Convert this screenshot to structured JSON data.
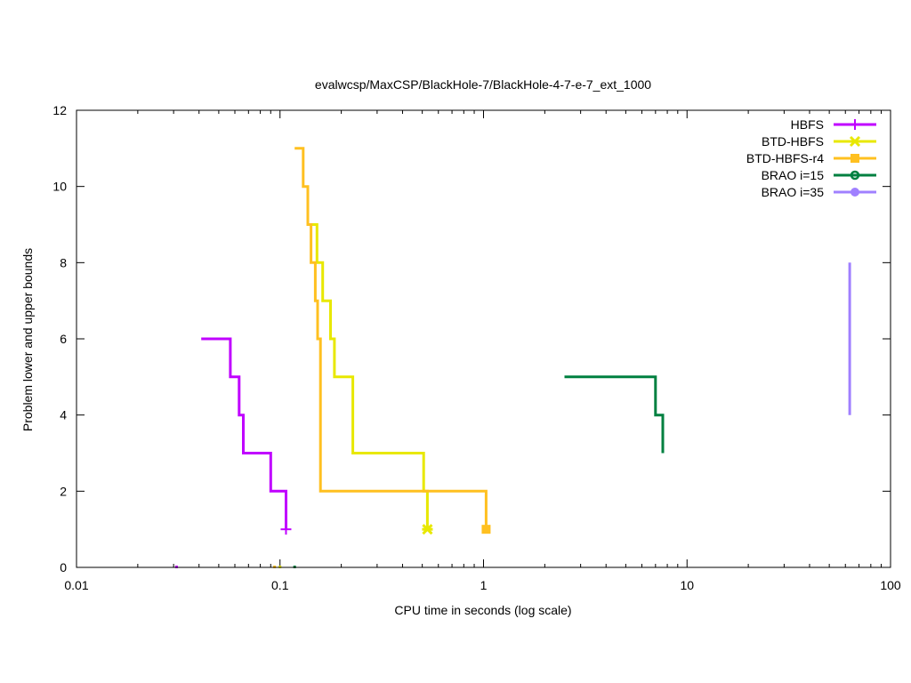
{
  "chart_data": {
    "type": "line",
    "title": "evalwcsp/MaxCSP/BlackHole-7/BlackHole-4-7-e-7_ext_1000",
    "xlabel": "CPU time in seconds (log scale)",
    "ylabel": "Problem lower and upper bounds",
    "xscale": "log",
    "xlim": [
      0.01,
      100
    ],
    "ylim": [
      0,
      12
    ],
    "xticks": [
      0.01,
      0.1,
      1,
      10,
      100
    ],
    "xtick_labels": [
      "0.01",
      "0.1",
      "1",
      "10",
      "100"
    ],
    "yticks": [
      0,
      2,
      4,
      6,
      8,
      10,
      12
    ],
    "ytick_labels": [
      "0",
      "2",
      "4",
      "6",
      "8",
      "10",
      "12"
    ],
    "legend_position": "top-right",
    "series": [
      {
        "name": "HBFS",
        "color": "#c000ff",
        "marker": "plus",
        "upper": [
          [
            0.041,
            6
          ],
          [
            0.057,
            6
          ],
          [
            0.057,
            5
          ],
          [
            0.063,
            5
          ],
          [
            0.063,
            4
          ],
          [
            0.066,
            4
          ],
          [
            0.066,
            3
          ],
          [
            0.09,
            3
          ],
          [
            0.09,
            2
          ],
          [
            0.107,
            2
          ],
          [
            0.107,
            1
          ]
        ],
        "final": [
          0.107,
          1
        ],
        "lower_marks": [
          [
            0.031,
            0
          ]
        ]
      },
      {
        "name": "BTD-HBFS",
        "color": "#e8e800",
        "marker": "star",
        "upper": [
          [
            0.135,
            9
          ],
          [
            0.152,
            9
          ],
          [
            0.152,
            8
          ],
          [
            0.162,
            8
          ],
          [
            0.162,
            7
          ],
          [
            0.177,
            7
          ],
          [
            0.177,
            6
          ],
          [
            0.185,
            6
          ],
          [
            0.185,
            5
          ],
          [
            0.228,
            5
          ],
          [
            0.228,
            3
          ],
          [
            0.508,
            3
          ],
          [
            0.508,
            2
          ],
          [
            0.53,
            2
          ],
          [
            0.53,
            1
          ]
        ],
        "final": [
          0.53,
          1
        ],
        "lower_marks": [
          [
            0.1,
            0
          ]
        ]
      },
      {
        "name": "BTD-HBFS-r4",
        "color": "#ffc020",
        "marker": "square",
        "upper": [
          [
            0.118,
            11
          ],
          [
            0.13,
            11
          ],
          [
            0.13,
            10
          ],
          [
            0.137,
            10
          ],
          [
            0.137,
            9
          ],
          [
            0.142,
            9
          ],
          [
            0.142,
            8
          ],
          [
            0.149,
            8
          ],
          [
            0.149,
            7
          ],
          [
            0.153,
            7
          ],
          [
            0.153,
            6
          ],
          [
            0.158,
            6
          ],
          [
            0.158,
            2
          ],
          [
            1.03,
            2
          ],
          [
            1.03,
            1
          ]
        ],
        "final": [
          1.03,
          1
        ],
        "lower_marks": [
          [
            0.094,
            0
          ]
        ]
      },
      {
        "name": "BRAO i=15",
        "color": "#008040",
        "marker": "circle",
        "upper": [
          [
            2.5,
            5
          ],
          [
            7.0,
            5
          ],
          [
            7.0,
            4
          ],
          [
            7.6,
            4
          ],
          [
            7.6,
            3
          ]
        ],
        "lower_marks": [
          [
            0.118,
            0
          ]
        ]
      },
      {
        "name": "BRAO i=35",
        "color": "#a080ff",
        "marker": "disc",
        "upper": [
          [
            63,
            8
          ],
          [
            63,
            4
          ]
        ],
        "lower_marks": []
      }
    ]
  }
}
